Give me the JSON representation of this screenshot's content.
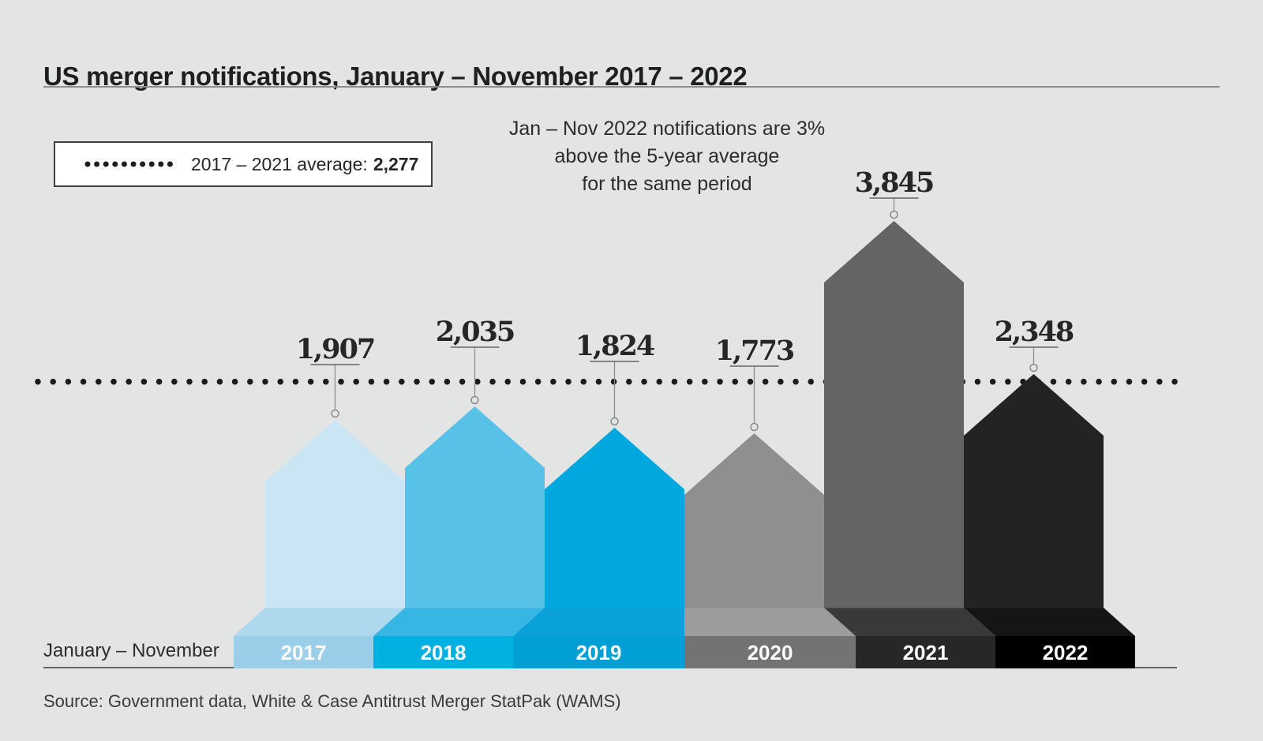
{
  "header": {
    "title": "US merger notifications, January – November 2017 – 2022"
  },
  "legend": {
    "label": "2017 – 2021 average:",
    "value": "2,277"
  },
  "annotation": {
    "line1": "Jan – Nov 2022 notifications are 3%",
    "line2": "above the 5-year average",
    "line3": "for the same period"
  },
  "axis": {
    "row_label": "January – November"
  },
  "source": {
    "text": "Source: Government data, White & Case Antitrust Merger StatPak (WAMS)"
  },
  "chart_data": {
    "type": "bar",
    "title": "US merger notifications, January – November 2017 – 2022",
    "categories": [
      "2017",
      "2018",
      "2019",
      "2020",
      "2021",
      "2022"
    ],
    "values": [
      1907,
      2035,
      1824,
      1773,
      3845,
      2348
    ],
    "value_labels": [
      "1,907",
      "2,035",
      "1,824",
      "1,773",
      "3,845",
      "2,348"
    ],
    "average": 2277,
    "average_label": "2,277",
    "xlabel": "January – November",
    "ylabel": "",
    "grid": false,
    "legend_position": "top-left",
    "bar_colors": [
      {
        "body": "#cae6f4",
        "slope": "#aed8ee",
        "front": "#9bcfe9"
      },
      {
        "body": "#58c1e8",
        "slope": "#36b7e3",
        "front": "#00b0e1"
      },
      {
        "body": "#00a8e0",
        "slope": "#0aa1d9",
        "front": "#009fd5"
      },
      {
        "body": "#8f8f8f",
        "slope": "#9c9c9c",
        "front": "#737373"
      },
      {
        "body": "#646464",
        "slope": "#39393b",
        "front": "#272729"
      },
      {
        "body": "#232325",
        "slope": "#151517",
        "front": "#000000"
      }
    ],
    "dotted_line_color": "#1b1b1b",
    "background_color": "#e3e4e4"
  }
}
